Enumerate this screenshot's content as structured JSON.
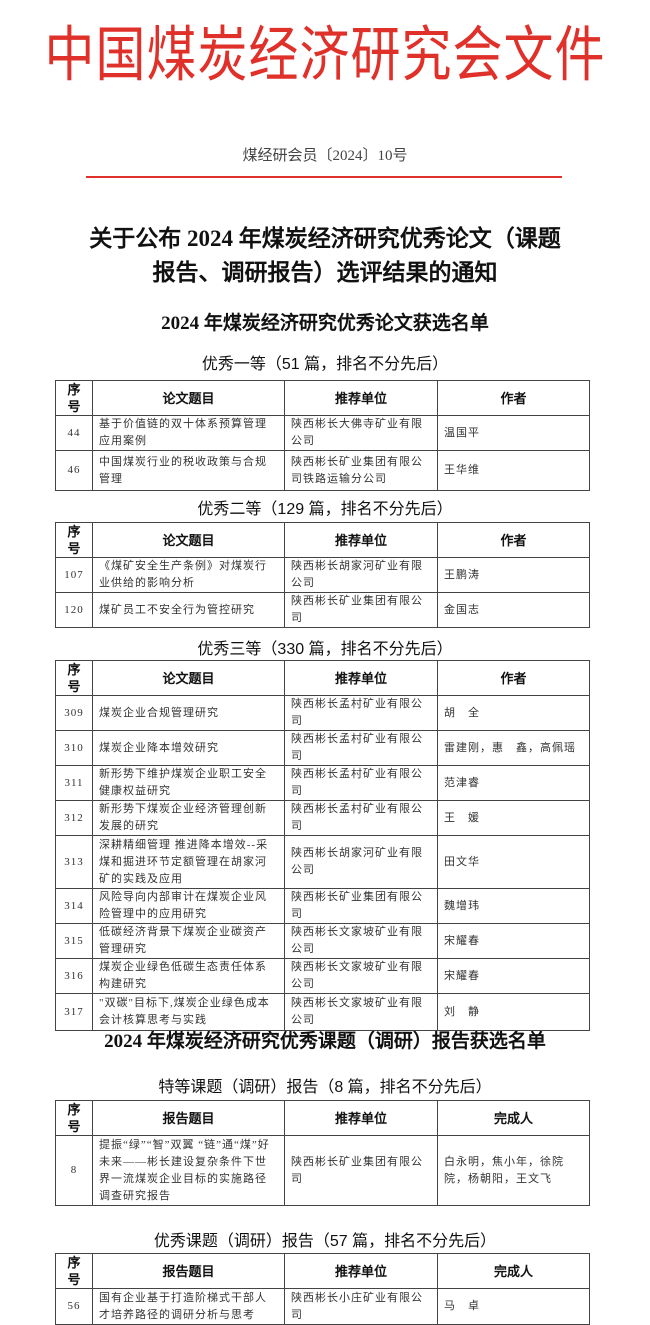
{
  "header": {
    "org_title": "中国煤炭经济研究会文件",
    "doc_number": "煤经研会员〔2024〕10号",
    "colors": {
      "red": "#e0302a"
    }
  },
  "notice_title": [
    "关于公布 2024 年煤炭经济研究优秀论文（课题",
    "报告、调研报告）选评结果的通知"
  ],
  "papers": {
    "title": "2024 年煤炭经济研究优秀论文获选名单",
    "columns": [
      "序号",
      "论文题目",
      "推荐单位",
      "作者"
    ],
    "groups": [
      {
        "heading": "优秀一等（51 篇，排名不分先后）",
        "rows": [
          [
            "44",
            "基于价值链的双十体系预算管理应用案例",
            "陕西彬长大佛寺矿业有限公司",
            "温国平"
          ],
          [
            "46",
            "中国煤炭行业的税收政策与合规管理",
            "陕西彬长矿业集团有限公司铁路运输分公司",
            "王华维"
          ]
        ]
      },
      {
        "heading": "优秀二等（129 篇，排名不分先后）",
        "rows": [
          [
            "107",
            "《煤矿安全生产条例》对煤炭行业供给的影响分析",
            "陕西彬长胡家河矿业有限公司",
            "王鹏涛"
          ],
          [
            "120",
            "煤矿员工不安全行为管控研究",
            "陕西彬长矿业集团有限公司",
            "金国志"
          ]
        ]
      },
      {
        "heading": "优秀三等（330 篇，排名不分先后）",
        "rows": [
          [
            "309",
            "煤炭企业合规管理研究",
            "陕西彬长孟村矿业有限公司",
            "胡　全"
          ],
          [
            "310",
            "煤炭企业降本增效研究",
            "陕西彬长孟村矿业有限公司",
            "雷建刚，惠　鑫，高佩瑶"
          ],
          [
            "311",
            "新形势下维护煤炭企业职工安全健康权益研究",
            "陕西彬长孟村矿业有限公司",
            "范津睿"
          ],
          [
            "312",
            "新形势下煤炭企业经济管理创新发展的研究",
            "陕西彬长孟村矿业有限公司",
            "王　媛"
          ],
          [
            "313",
            "深耕精细管理 推进降本增效--采煤和掘进环节定额管理在胡家河矿的实践及应用",
            "陕西彬长胡家河矿业有限公司",
            "田文华"
          ],
          [
            "314",
            "风险导向内部审计在煤炭企业风险管理中的应用研究",
            "陕西彬长矿业集团有限公司",
            "魏增玮"
          ],
          [
            "315",
            "低碳经济背景下煤炭企业碳资产管理研究",
            "陕西彬长文家坡矿业有限公司",
            "宋耀春"
          ],
          [
            "316",
            "煤炭企业绿色低碳生态责任体系构建研究",
            "陕西彬长文家坡矿业有限公司",
            "宋耀春"
          ],
          [
            "317",
            "\"双碳\"目标下,煤炭企业绿色成本会计核算思考与实践",
            "陕西彬长文家坡矿业有限公司",
            "刘　静"
          ]
        ]
      }
    ]
  },
  "reports": {
    "title": "2024 年煤炭经济研究优秀课题（调研）报告获选名单",
    "columns": [
      "序号",
      "报告题目",
      "推荐单位",
      "完成人"
    ],
    "groups": [
      {
        "heading": "特等课题（调研）报告（8 篇，排名不分先后）",
        "rows": [
          [
            "8",
            "提振“绿”“智”双翼 “链”通“煤”好未来——彬长建设复杂条件下世界一流煤炭企业目标的实施路径调查研究报告",
            "陕西彬长矿业集团有限公司",
            "白永明，焦小年，徐院院，杨朝阳，王文飞"
          ]
        ]
      },
      {
        "heading": "优秀课题（调研）报告（57 篇，排名不分先后）",
        "rows": [
          [
            "56",
            "国有企业基于打造阶梯式干部人才培养路径的调研分析与思考",
            "陕西彬长小庄矿业有限公司",
            "马　卓"
          ]
        ]
      }
    ]
  }
}
